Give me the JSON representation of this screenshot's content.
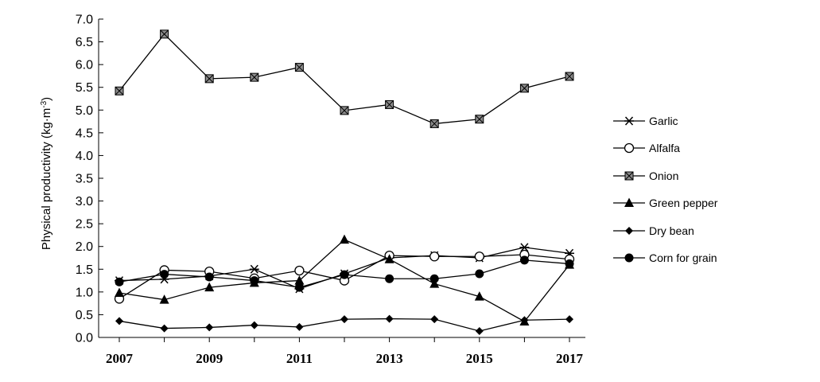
{
  "chart_data": {
    "type": "line",
    "title": "",
    "xlabel": "",
    "ylabel": "Physical productivity (kg·m⁻³)",
    "ylabel_main": "Physical productivity (kg·m",
    "ylabel_sup": "-3",
    "ylabel_end": ")",
    "x": [
      2007,
      2008,
      2009,
      2010,
      2011,
      2012,
      2013,
      2014,
      2015,
      2016,
      2017
    ],
    "xtick_labels": [
      "2007",
      "2009",
      "2011",
      "2013",
      "2015",
      "2017"
    ],
    "ytick_labels": [
      "0.0",
      "0.5",
      "1.0",
      "1.5",
      "2.0",
      "2.5",
      "3.0",
      "3.5",
      "4.0",
      "4.5",
      "5.0",
      "5.5",
      "6.0",
      "6.5",
      "7.0"
    ],
    "ylim": [
      0,
      7
    ],
    "xlim": [
      2007,
      2017
    ],
    "grid": false,
    "legend_position": "right",
    "series": [
      {
        "name": "Garlic",
        "marker": "asterisk",
        "values": [
          1.25,
          1.28,
          1.35,
          1.5,
          1.07,
          1.4,
          1.75,
          1.8,
          1.75,
          1.98,
          1.85
        ]
      },
      {
        "name": "Alfalfa",
        "marker": "open-circle",
        "values": [
          0.85,
          1.48,
          1.45,
          1.3,
          1.47,
          1.25,
          1.8,
          1.78,
          1.78,
          1.82,
          1.72
        ]
      },
      {
        "name": "Onion",
        "marker": "crossed-square",
        "values": [
          5.42,
          6.67,
          5.69,
          5.72,
          5.94,
          4.99,
          5.12,
          4.7,
          4.8,
          5.48,
          5.74
        ]
      },
      {
        "name": "Green pepper",
        "marker": "triangle",
        "values": [
          0.98,
          0.83,
          1.1,
          1.2,
          1.25,
          2.15,
          1.72,
          1.18,
          0.9,
          0.35,
          1.6
        ]
      },
      {
        "name": "Dry bean",
        "marker": "diamond",
        "values": [
          0.36,
          0.2,
          0.22,
          0.27,
          0.23,
          0.4,
          0.41,
          0.4,
          0.14,
          0.38,
          0.4
        ]
      },
      {
        "name": "Corn for grain",
        "marker": "filled-circle",
        "values": [
          1.22,
          1.39,
          1.33,
          1.25,
          1.1,
          1.38,
          1.29,
          1.29,
          1.4,
          1.7,
          1.62
        ]
      }
    ]
  }
}
